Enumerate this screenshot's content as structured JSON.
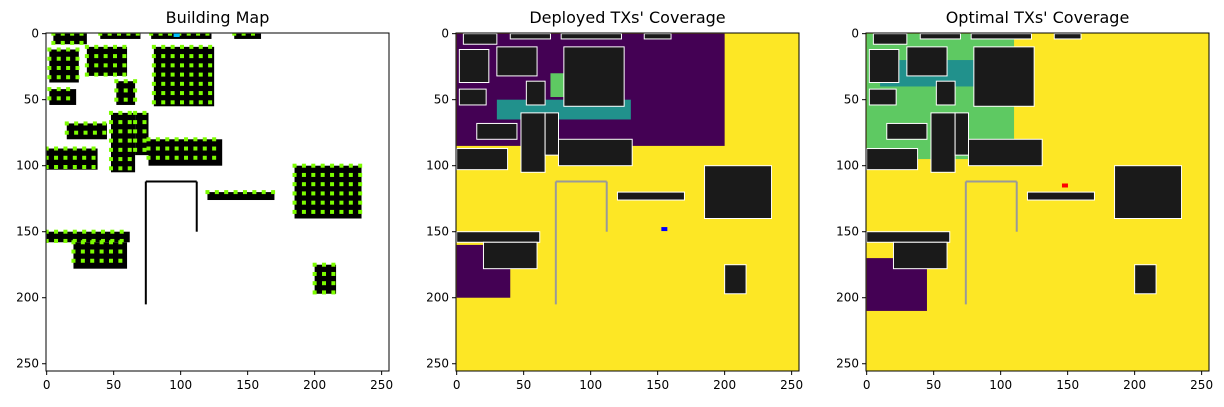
{
  "figure": {
    "panels": [
      {
        "title": "Building Map"
      },
      {
        "title": "Deployed TXs' Coverage"
      },
      {
        "title": "Optimal TXs' Coverage"
      }
    ]
  },
  "chart_data": [
    {
      "type": "heatmap",
      "title": "Building Map",
      "xlabel": "",
      "ylabel": "",
      "xlim": [
        0,
        255
      ],
      "ylim": [
        255,
        0
      ],
      "xticks": [
        0,
        50,
        100,
        150,
        200,
        250
      ],
      "yticks": [
        0,
        50,
        100,
        150,
        200,
        250
      ],
      "colors": {
        "building": "#000000",
        "background": "#ffffff",
        "candidate_tx": "#7cfc00",
        "deployed_tx": "#00bfff"
      },
      "deployed_tx": [
        {
          "x": 97,
          "y": 1
        }
      ],
      "buildings": [
        {
          "x": 5,
          "y": 0,
          "w": 25,
          "h": 8
        },
        {
          "x": 40,
          "y": 0,
          "w": 30,
          "h": 4
        },
        {
          "x": 78,
          "y": 0,
          "w": 45,
          "h": 4
        },
        {
          "x": 140,
          "y": 0,
          "w": 20,
          "h": 4
        },
        {
          "x": 2,
          "y": 12,
          "w": 22,
          "h": 25
        },
        {
          "x": 30,
          "y": 10,
          "w": 30,
          "h": 22
        },
        {
          "x": 80,
          "y": 10,
          "w": 45,
          "h": 45
        },
        {
          "x": 2,
          "y": 42,
          "w": 20,
          "h": 12
        },
        {
          "x": 52,
          "y": 36,
          "w": 14,
          "h": 18
        },
        {
          "x": 15,
          "y": 68,
          "w": 30,
          "h": 12
        },
        {
          "x": 48,
          "y": 60,
          "w": 18,
          "h": 45
        },
        {
          "x": 66,
          "y": 60,
          "w": 10,
          "h": 32
        },
        {
          "x": 0,
          "y": 87,
          "w": 38,
          "h": 16
        },
        {
          "x": 76,
          "y": 80,
          "w": 55,
          "h": 20
        },
        {
          "x": 185,
          "y": 100,
          "w": 50,
          "h": 40
        },
        {
          "x": 120,
          "y": 120,
          "w": 50,
          "h": 6
        },
        {
          "x": 0,
          "y": 150,
          "w": 62,
          "h": 8
        },
        {
          "x": 20,
          "y": 158,
          "w": 40,
          "h": 20
        },
        {
          "x": 200,
          "y": 175,
          "w": 16,
          "h": 22
        }
      ],
      "walls": [
        {
          "x1": 74,
          "y1": 112,
          "x2": 74,
          "y2": 205
        },
        {
          "x1": 74,
          "y1": 112,
          "x2": 112,
          "y2": 112
        },
        {
          "x1": 112,
          "y1": 112,
          "x2": 112,
          "y2": 150
        }
      ],
      "candidate_tx_density": "grid every 7 px on building perimeters"
    },
    {
      "type": "heatmap",
      "title": "Deployed TXs' Coverage",
      "xlabel": "",
      "ylabel": "",
      "xlim": [
        0,
        255
      ],
      "ylim": [
        255,
        0
      ],
      "xticks": [
        0,
        50,
        100,
        150,
        200,
        250
      ],
      "yticks": [
        0,
        50,
        100,
        150,
        200,
        250
      ],
      "colormap": [
        "#440154",
        "#21918c",
        "#5ec962",
        "#fde725"
      ],
      "transmitters": [
        {
          "x": 155,
          "y": 148,
          "color": "#0000ff"
        }
      ]
    },
    {
      "type": "heatmap",
      "title": "Optimal TXs' Coverage",
      "xlabel": "",
      "ylabel": "",
      "xlim": [
        0,
        255
      ],
      "ylim": [
        255,
        0
      ],
      "xticks": [
        0,
        50,
        100,
        150,
        200,
        250
      ],
      "yticks": [
        0,
        50,
        100,
        150,
        200,
        250
      ],
      "colormap": [
        "#440154",
        "#21918c",
        "#5ec962",
        "#fde725"
      ],
      "transmitters": [
        {
          "x": 148,
          "y": 115,
          "color": "#ff0000"
        }
      ]
    }
  ]
}
